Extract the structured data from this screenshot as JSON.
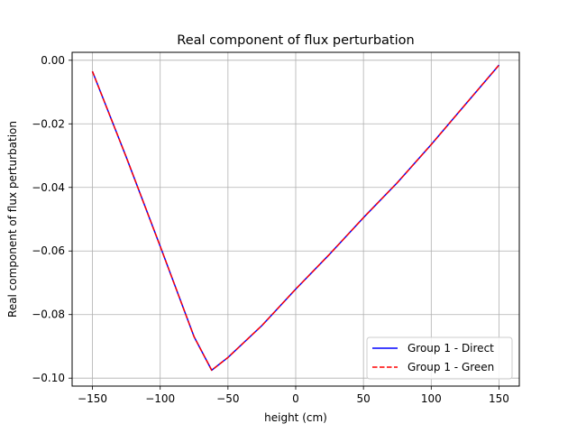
{
  "chart_data": {
    "type": "line",
    "title": "Real component of flux perturbation",
    "xlabel": "height (cm)",
    "ylabel": "Real component of flux perturbation",
    "xlim": [
      -165,
      165
    ],
    "ylim": [
      -0.1025,
      0.0025
    ],
    "xticks": [
      -150,
      -100,
      -50,
      0,
      50,
      100,
      150
    ],
    "yticks": [
      0.0,
      -0.02,
      -0.04,
      -0.06,
      -0.08,
      -0.1
    ],
    "xtick_labels": [
      "−150",
      "−100",
      "−50",
      "0",
      "50",
      "100",
      "150"
    ],
    "ytick_labels": [
      "0.00",
      "−0.02",
      "−0.04",
      "−0.06",
      "−0.08",
      "−0.10"
    ],
    "grid": true,
    "legend_position": "lower-right",
    "series": [
      {
        "name": "Group 1 - Direct",
        "color": "#0000ff",
        "style": "solid",
        "x": [
          -150,
          -125,
          -100,
          -75,
          -62,
          -50,
          -25,
          0,
          25,
          50,
          75,
          100,
          125,
          150
        ],
        "y": [
          -0.0035,
          -0.0305,
          -0.0585,
          -0.087,
          -0.0975,
          -0.0935,
          -0.0835,
          -0.072,
          -0.061,
          -0.0495,
          -0.0385,
          -0.0265,
          -0.014,
          -0.0015
        ]
      },
      {
        "name": "Group 1 - Green",
        "color": "#ff0000",
        "style": "dashed",
        "x": [
          -150,
          -125,
          -100,
          -75,
          -62,
          -50,
          -25,
          0,
          25,
          50,
          75,
          100,
          125,
          150
        ],
        "y": [
          -0.0035,
          -0.0305,
          -0.0585,
          -0.087,
          -0.0975,
          -0.0935,
          -0.0835,
          -0.072,
          -0.061,
          -0.0495,
          -0.0385,
          -0.0265,
          -0.014,
          -0.0015
        ]
      }
    ]
  }
}
